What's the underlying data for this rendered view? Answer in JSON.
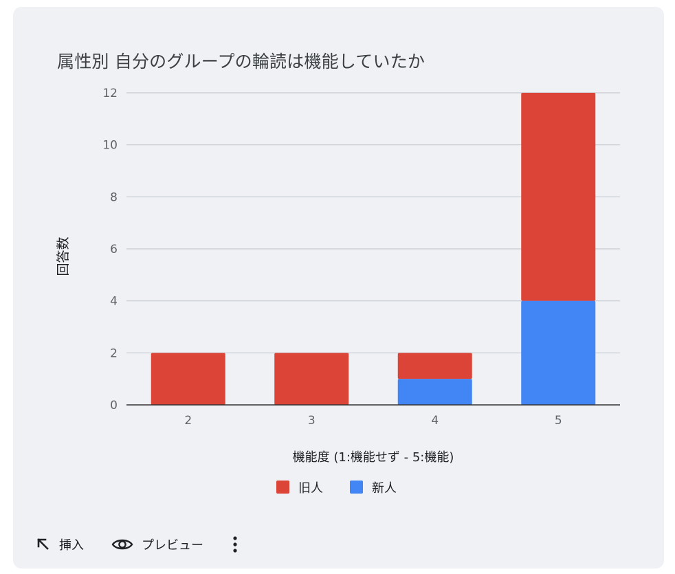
{
  "chart_data": {
    "type": "bar",
    "stacked": true,
    "title": "属性別 自分のグループの輪読は機能していたか",
    "xlabel": "機能度 (1:機能せず - 5:機能)",
    "ylabel": "回答数",
    "categories": [
      "2",
      "3",
      "4",
      "5"
    ],
    "series": [
      {
        "name": "新人",
        "color": "#4285f4",
        "values": [
          0,
          0,
          1,
          4
        ]
      },
      {
        "name": "旧人",
        "color": "#db4437",
        "values": [
          2,
          2,
          1,
          8
        ]
      }
    ],
    "legend_order": [
      "旧人",
      "新人"
    ],
    "yticks": [
      "0",
      "2",
      "4",
      "6",
      "8",
      "10",
      "12"
    ],
    "ylim": [
      0,
      12
    ],
    "grid": true,
    "legend_position": "bottom"
  },
  "toolbar": {
    "insert_label": "挿入",
    "preview_label": "プレビュー",
    "insert_icon": "arrow-up-left-icon",
    "preview_icon": "eye-icon",
    "more_icon": "more-vert-icon"
  }
}
